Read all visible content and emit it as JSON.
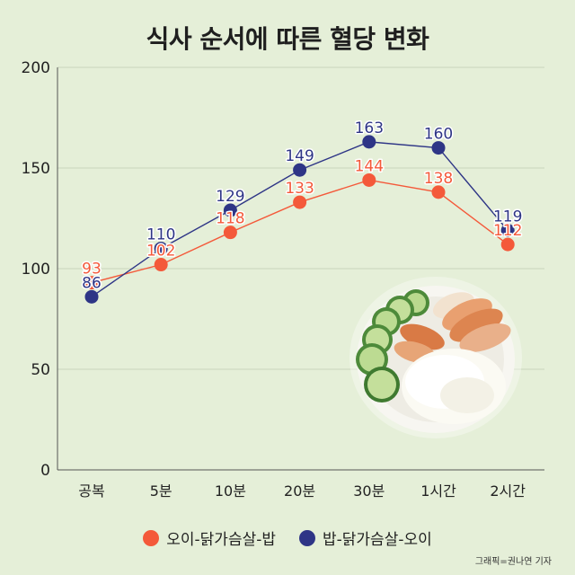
{
  "chart_data": {
    "type": "line",
    "title": "식사 순서에 따른 혈당 변화",
    "categories": [
      "공복",
      "5분",
      "10분",
      "20분",
      "30분",
      "1시간",
      "2시간"
    ],
    "ylim": [
      0,
      200
    ],
    "yticks": [
      "0",
      "50",
      "100",
      "150",
      "200"
    ],
    "grid": true,
    "legend_position": "bottom",
    "series": [
      {
        "name": "오이-닭가슴살-밥",
        "color": "#f4593a",
        "values": [
          93,
          102,
          118,
          133,
          144,
          138,
          112
        ]
      },
      {
        "name": "밥-닭가슴살-오이",
        "color": "#2e3586",
        "values": [
          86,
          110,
          129,
          149,
          163,
          160,
          119
        ]
      }
    ]
  },
  "credit": "그래픽=권나연 기자",
  "illustration": "plate-of-rice-cucumber-chicken"
}
